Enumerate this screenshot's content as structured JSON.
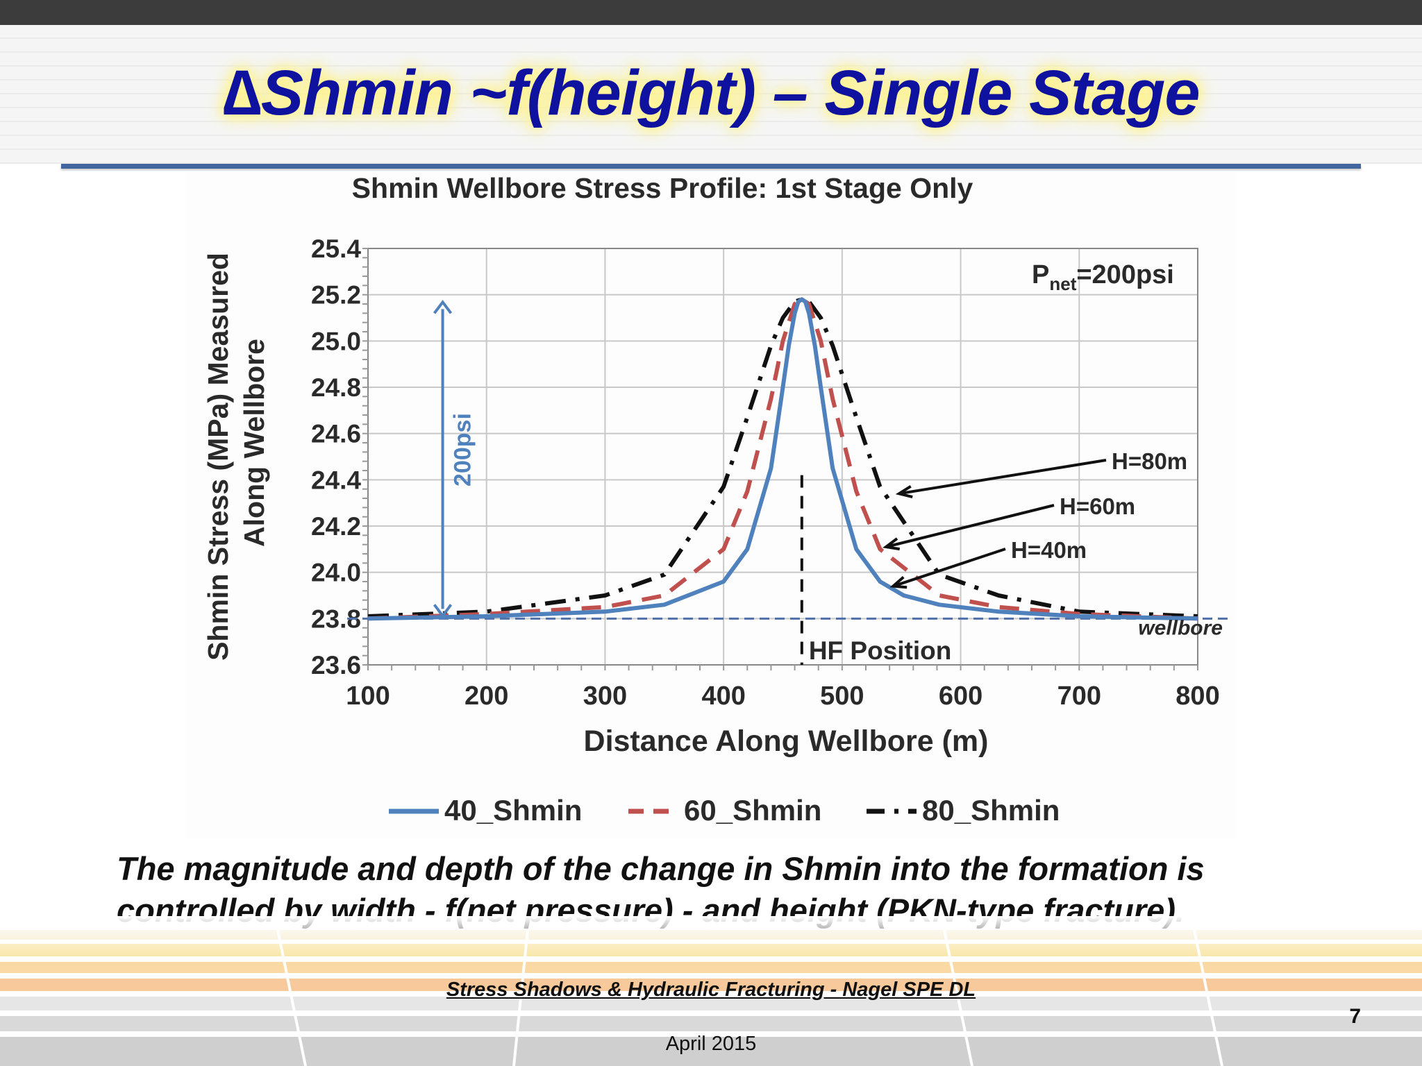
{
  "slide": {
    "title": "∆Shmin ~f(height) – Single Stage",
    "caption": "The magnitude and depth of the change in Shmin into the formation is controlled by width - f(net pressure) - and height (PKN-type fracture).",
    "footer_reference": "Stress Shadows & Hydraulic Fracturing - Nagel SPE DL",
    "footer_date": "April 2015",
    "page_number": "7"
  },
  "chart_data": {
    "type": "line",
    "title": "Shmin Wellbore Stress Profile: 1st Stage Only",
    "xlabel": "Distance Along Wellbore (m)",
    "ylabel": "Shmin Stress (MPa) Measured Along Wellbore",
    "xlim": [
      100,
      800
    ],
    "ylim": [
      23.6,
      25.4
    ],
    "x_ticks": [
      100,
      200,
      300,
      400,
      500,
      600,
      700,
      800
    ],
    "y_ticks": [
      23.6,
      23.8,
      24.0,
      24.2,
      24.4,
      24.6,
      24.8,
      25.0,
      25.2,
      25.4
    ],
    "x_tick_labels": [
      "100",
      "200",
      "300",
      "400",
      "500",
      "600",
      "700",
      "800"
    ],
    "y_tick_labels": [
      "23.6",
      "23.8",
      "24.0",
      "24.2",
      "24.4",
      "24.6",
      "24.8",
      "25.0",
      "25.2",
      "25.4"
    ],
    "grid": true,
    "legend_position": "bottom",
    "hf_position": 466,
    "series": [
      {
        "name": "40_Shmin",
        "color": "#4f81bd",
        "dash": "solid",
        "x": [
          100,
          200,
          300,
          350,
          400,
          420,
          440,
          450,
          455,
          460,
          463,
          466,
          469,
          472,
          477,
          482,
          492,
          512,
          532,
          552,
          582,
          632,
          700,
          800
        ],
        "y": [
          23.8,
          23.81,
          23.83,
          23.86,
          23.96,
          24.1,
          24.45,
          24.8,
          24.98,
          25.12,
          25.17,
          25.18,
          25.17,
          25.12,
          24.98,
          24.8,
          24.45,
          24.1,
          23.96,
          23.9,
          23.86,
          23.83,
          23.81,
          23.8
        ]
      },
      {
        "name": "60_Shmin",
        "color": "#c0504d",
        "dash": "dashed",
        "x": [
          100,
          200,
          300,
          350,
          400,
          420,
          440,
          450,
          460,
          466,
          472,
          482,
          492,
          512,
          532,
          582,
          632,
          700,
          800
        ],
        "y": [
          23.8,
          23.82,
          23.85,
          23.9,
          24.1,
          24.35,
          24.75,
          25.0,
          25.16,
          25.18,
          25.16,
          25.0,
          24.75,
          24.35,
          24.1,
          23.9,
          23.85,
          23.82,
          23.8
        ]
      },
      {
        "name": "80_Shmin",
        "color": "#111111",
        "dash": "dash-dot",
        "x": [
          100,
          200,
          300,
          350,
          400,
          420,
          440,
          450,
          460,
          466,
          472,
          482,
          492,
          512,
          532,
          582,
          632,
          700,
          800
        ],
        "y": [
          23.81,
          23.83,
          23.9,
          23.99,
          24.37,
          24.67,
          24.98,
          25.1,
          25.17,
          25.18,
          25.17,
          25.1,
          24.98,
          24.67,
          24.37,
          23.99,
          23.9,
          23.83,
          23.81
        ]
      }
    ],
    "reference_line": {
      "y": 23.8,
      "label": "wellbore"
    },
    "annotations": {
      "pnet_main": "P",
      "pnet_sub": "net",
      "pnet_rest": "=200psi",
      "arrow_label": "200psi",
      "arrow_from": 23.8,
      "arrow_to": 25.18,
      "hf_label": "HF Position",
      "h80": "H=80m",
      "h60": "H=60m",
      "h40": "H=40m"
    }
  }
}
